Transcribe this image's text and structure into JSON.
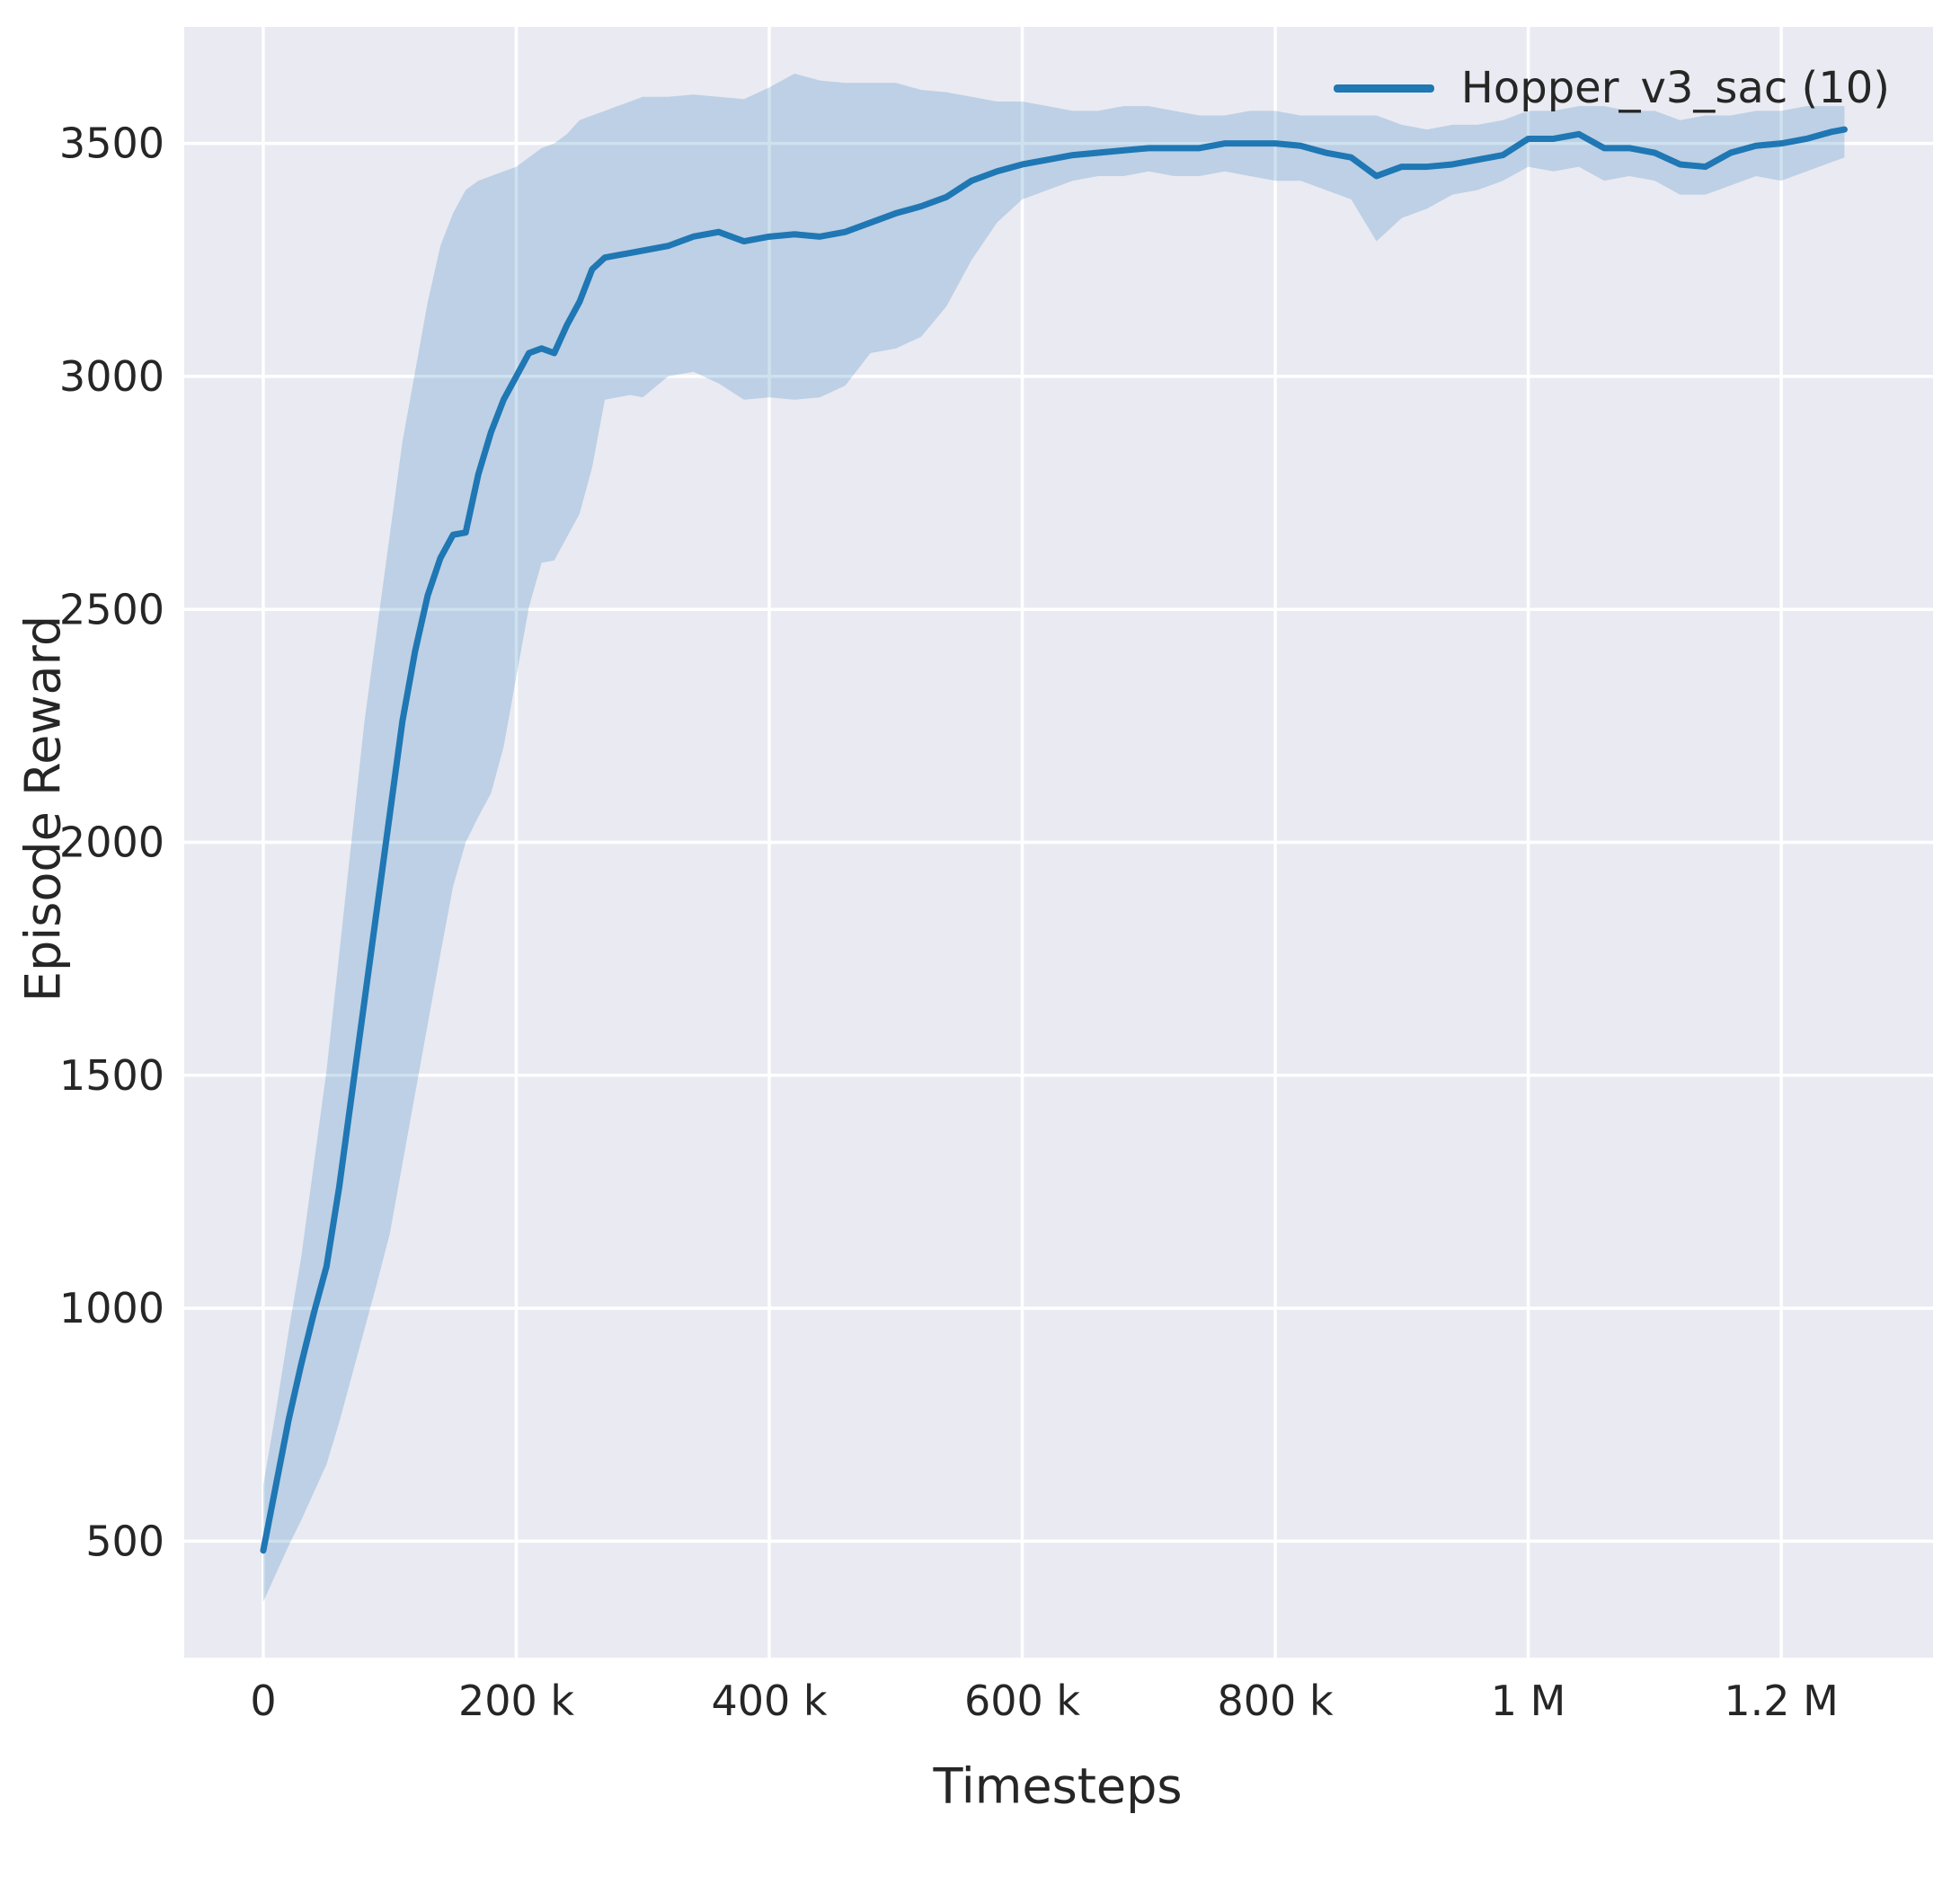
{
  "chart_data": {
    "type": "line",
    "title": "",
    "xlabel": "Timesteps",
    "ylabel": "Episode Reward",
    "xlim": [
      -62500,
      1320000
    ],
    "ylim": [
      250,
      3750
    ],
    "x_ticks": [
      0,
      200000,
      400000,
      600000,
      800000,
      1000000,
      1200000
    ],
    "x_tick_labels": [
      "0",
      "200 k",
      "400 k",
      "600 k",
      "800 k",
      "1 M",
      "1.2 M"
    ],
    "y_ticks": [
      500,
      1000,
      1500,
      2000,
      2500,
      3000,
      3500
    ],
    "y_tick_labels": [
      "500",
      "1000",
      "1500",
      "2000",
      "2500",
      "3000",
      "3500"
    ],
    "grid": true,
    "legend_position": "upper right",
    "colors": {
      "line": "#1f77b4",
      "band": "rgba(31,119,180,0.22)",
      "axes_background": "#eaeaf2",
      "grid": "#ffffff",
      "text": "#262626",
      "figure_background": "#ffffff"
    },
    "series": [
      {
        "name": "Hopper_v3_sac (10)",
        "x": [
          0,
          10000,
          20000,
          30000,
          40000,
          50000,
          60000,
          70000,
          80000,
          90000,
          100000,
          110000,
          120000,
          130000,
          140000,
          150000,
          160000,
          170000,
          180000,
          190000,
          200000,
          210000,
          220000,
          230000,
          240000,
          250000,
          260000,
          270000,
          280000,
          290000,
          300000,
          320000,
          340000,
          360000,
          380000,
          400000,
          420000,
          440000,
          460000,
          480000,
          500000,
          520000,
          540000,
          560000,
          580000,
          600000,
          620000,
          640000,
          660000,
          680000,
          700000,
          720000,
          740000,
          760000,
          780000,
          800000,
          820000,
          840000,
          860000,
          880000,
          900000,
          920000,
          940000,
          960000,
          980000,
          1000000,
          1020000,
          1040000,
          1060000,
          1080000,
          1100000,
          1120000,
          1140000,
          1160000,
          1180000,
          1200000,
          1220000,
          1240000,
          1250000
        ],
        "mean": [
          480,
          620,
          760,
          880,
          990,
          1090,
          1260,
          1460,
          1660,
          1860,
          2060,
          2260,
          2410,
          2530,
          2610,
          2660,
          2665,
          2790,
          2880,
          2950,
          3000,
          3050,
          3060,
          3050,
          3110,
          3160,
          3230,
          3255,
          3260,
          3265,
          3270,
          3280,
          3300,
          3310,
          3290,
          3300,
          3305,
          3300,
          3310,
          3330,
          3350,
          3365,
          3385,
          3420,
          3440,
          3455,
          3465,
          3475,
          3480,
          3485,
          3490,
          3490,
          3490,
          3500,
          3500,
          3500,
          3495,
          3480,
          3470,
          3430,
          3450,
          3450,
          3455,
          3465,
          3475,
          3510,
          3510,
          3520,
          3490,
          3490,
          3480,
          3455,
          3450,
          3480,
          3495,
          3500,
          3510,
          3525,
          3530
        ],
        "lower": [
          370,
          430,
          490,
          545,
          605,
          665,
          755,
          855,
          955,
          1055,
          1160,
          1310,
          1460,
          1610,
          1760,
          1905,
          2000,
          2055,
          2105,
          2205,
          2355,
          2505,
          2600,
          2605,
          2655,
          2705,
          2805,
          2950,
          2955,
          2960,
          2955,
          3000,
          3010,
          2985,
          2950,
          2955,
          2950,
          2955,
          2980,
          3050,
          3060,
          3085,
          3150,
          3250,
          3330,
          3380,
          3400,
          3420,
          3430,
          3430,
          3440,
          3430,
          3430,
          3440,
          3430,
          3420,
          3420,
          3400,
          3380,
          3290,
          3340,
          3360,
          3390,
          3400,
          3420,
          3450,
          3440,
          3450,
          3420,
          3430,
          3420,
          3390,
          3390,
          3410,
          3430,
          3420,
          3440,
          3460,
          3470
        ],
        "upper": [
          620,
          780,
          950,
          1110,
          1310,
          1510,
          1760,
          2010,
          2260,
          2460,
          2660,
          2860,
          3010,
          3160,
          3280,
          3350,
          3400,
          3420,
          3430,
          3440,
          3450,
          3470,
          3490,
          3500,
          3520,
          3550,
          3560,
          3570,
          3580,
          3590,
          3600,
          3600,
          3605,
          3600,
          3595,
          3620,
          3650,
          3635,
          3630,
          3630,
          3630,
          3615,
          3610,
          3600,
          3590,
          3590,
          3580,
          3570,
          3570,
          3580,
          3580,
          3570,
          3560,
          3560,
          3570,
          3570,
          3560,
          3560,
          3560,
          3560,
          3540,
          3530,
          3540,
          3540,
          3550,
          3570,
          3570,
          3580,
          3580,
          3570,
          3570,
          3550,
          3560,
          3560,
          3570,
          3570,
          3580,
          3580,
          3580
        ]
      }
    ]
  }
}
